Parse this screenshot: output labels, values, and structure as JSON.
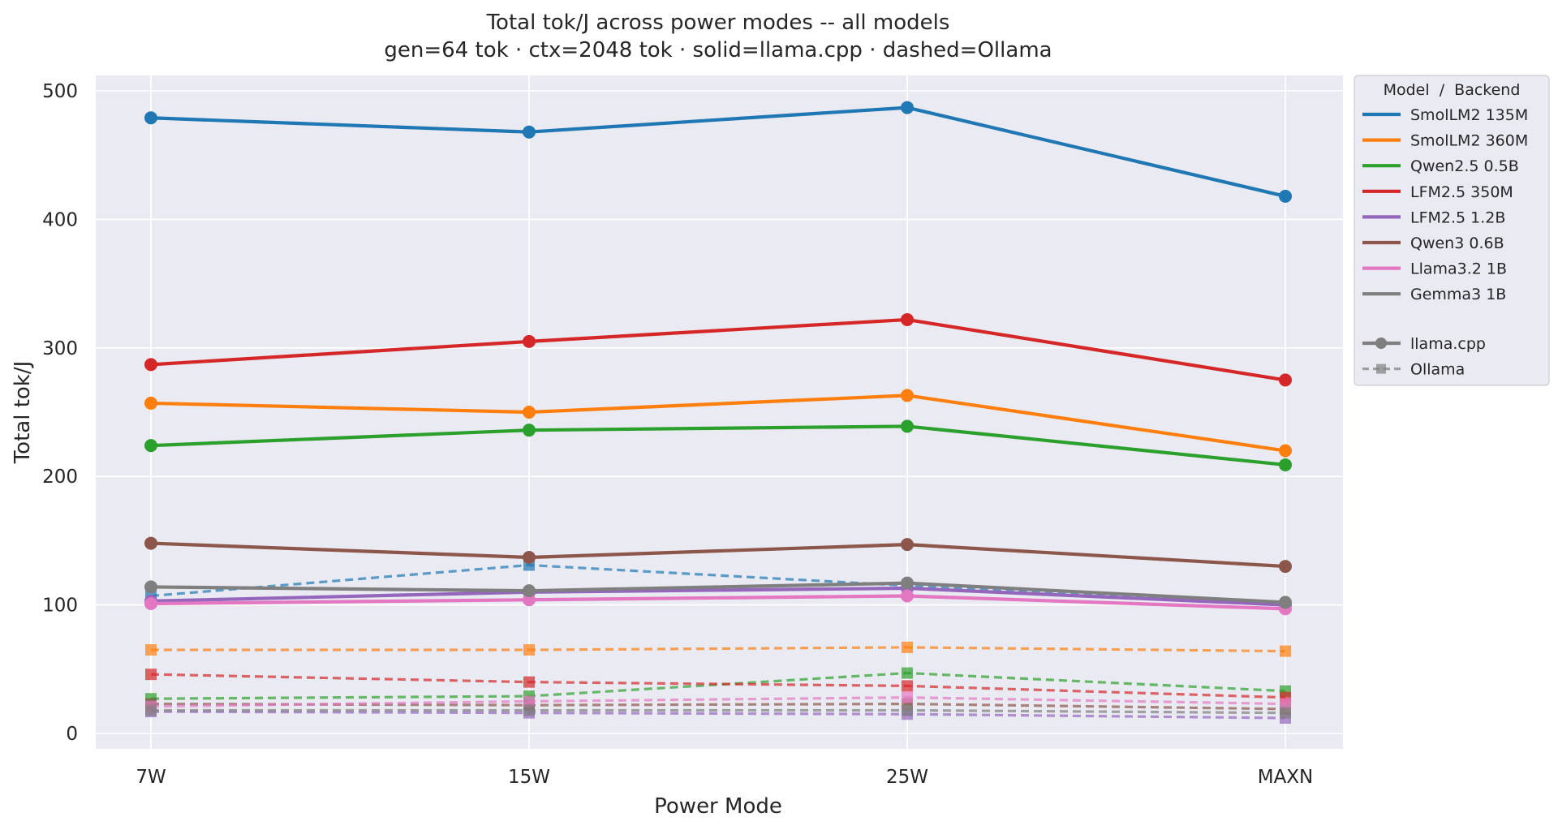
{
  "chart_data": {
    "type": "line",
    "title": "Total tok/J across power modes -- all models",
    "subtitle": "gen=64 tok · ctx=2048 tok · solid=llama.cpp · dashed=Ollama",
    "xlabel": "Power Mode",
    "ylabel": "Total tok/J",
    "categories": [
      "7W",
      "15W",
      "25W",
      "MAXN"
    ],
    "ylim": [
      -12,
      512
    ],
    "yticks": [
      0,
      100,
      200,
      300,
      400,
      500
    ],
    "grid": true,
    "legend_position": "outside-right-top",
    "legend_title": "Model  /  Backend",
    "series": [
      {
        "name": "SmolLM2 135M",
        "color": "#1f77b4",
        "llama": [
          479,
          468,
          487,
          418
        ],
        "ollama": [
          107,
          131,
          115,
          100
        ]
      },
      {
        "name": "SmolLM2 360M",
        "color": "#ff7f0e",
        "llama": [
          257,
          250,
          263,
          220
        ],
        "ollama": [
          65,
          65,
          67,
          64
        ]
      },
      {
        "name": "Qwen2.5 0.5B",
        "color": "#2ca02c",
        "llama": [
          224,
          236,
          239,
          209
        ],
        "ollama": [
          27,
          29,
          47,
          33
        ]
      },
      {
        "name": "LFM2.5 350M",
        "color": "#d62728",
        "llama": [
          287,
          305,
          322,
          275
        ],
        "ollama": [
          46,
          40,
          37,
          28
        ]
      },
      {
        "name": "LFM2.5 1.2B",
        "color": "#9467bd",
        "llama": [
          103,
          110,
          113,
          100
        ],
        "ollama": [
          17,
          16,
          15,
          12
        ]
      },
      {
        "name": "Qwen3 0.6B",
        "color": "#8c564b",
        "llama": [
          148,
          137,
          147,
          130
        ],
        "ollama": [
          23,
          22,
          23,
          19
        ]
      },
      {
        "name": "Llama3.2 1B",
        "color": "#e377c2",
        "llama": [
          101,
          104,
          107,
          97
        ],
        "ollama": [
          21,
          25,
          28,
          23
        ]
      },
      {
        "name": "Gemma3 1B",
        "color": "#7f7f7f",
        "llama": [
          114,
          111,
          117,
          102
        ],
        "ollama": [
          18,
          18,
          18,
          16
        ]
      }
    ],
    "style_legend": [
      {
        "label": "llama.cpp",
        "style": "solid",
        "marker": "circle"
      },
      {
        "label": "Ollama",
        "style": "dashed",
        "marker": "square"
      }
    ]
  }
}
